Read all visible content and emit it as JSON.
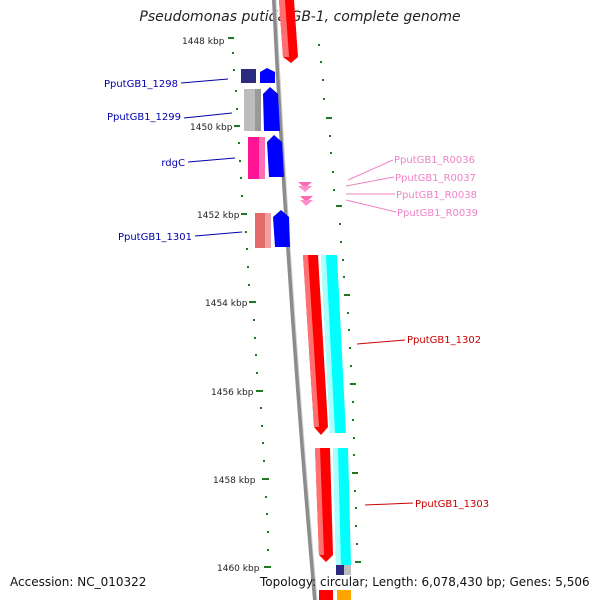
{
  "title": "Pseudomonas putida GB-1, complete genome",
  "footer": {
    "accession": "Accession: NC_010322",
    "summary": "Topology: circular; Length: 6,078,430 bp; Genes: 5,506"
  },
  "colors": {
    "backbone": "#8c8c8c",
    "tick": "#1f7a1f",
    "forward_cds": "#0000ff",
    "reverse_cds": "#ff0000",
    "cyan": "#00ffff",
    "pink_cds": "#ff1493",
    "gray_cds": "#bdbdbd",
    "navy_cds": "#2b2b80",
    "salmon_cds": "#e46a6a",
    "rna": "#ff69b4",
    "label_blue": "#0000aa",
    "label_red": "#cc0000",
    "label_pink": "#ee82c6"
  },
  "tick_labels": [
    "1448 kbp",
    "1450 kbp",
    "1452 kbp",
    "1454 kbp",
    "1456 kbp",
    "1458 kbp",
    "1460 kbp"
  ],
  "gene_labels_left": [
    "PputGB1_1298",
    "PputGB1_1299",
    "rdgC",
    "PputGB1_1301"
  ],
  "gene_labels_right": [
    "PputGB1_R0036",
    "PputGB1_R0037",
    "PputGB1_R0038",
    "PputGB1_R0039",
    "PputGB1_1302",
    "PputGB1_1303"
  ]
}
